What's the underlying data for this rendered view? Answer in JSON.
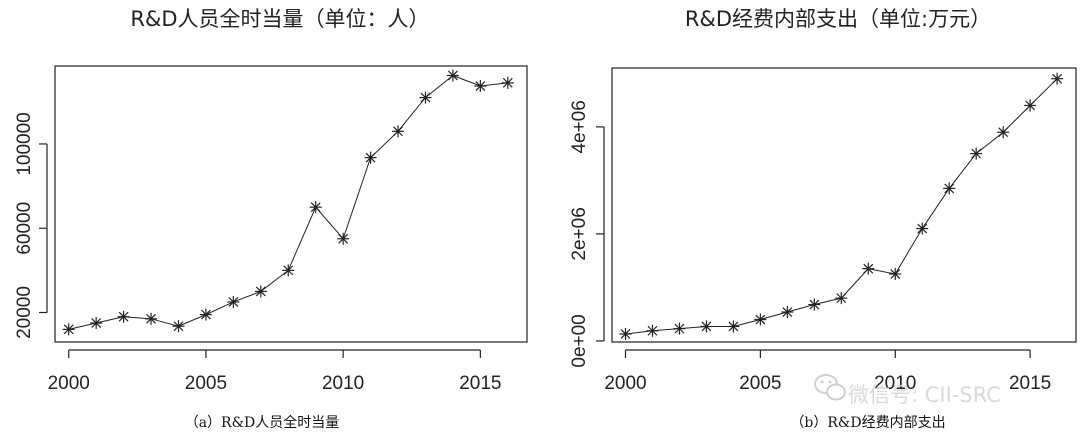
{
  "chart_data": [
    {
      "type": "line",
      "title": "R&D人员全时当量（单位：人）",
      "caption": "（a）R&D人员全时当量",
      "x": [
        2000,
        2001,
        2002,
        2003,
        2004,
        2005,
        2006,
        2007,
        2008,
        2009,
        2010,
        2011,
        2012,
        2013,
        2014,
        2015,
        2016
      ],
      "y": [
        12000,
        15000,
        18000,
        17000,
        13500,
        19000,
        25000,
        30000,
        40000,
        70000,
        55000,
        93500,
        106000,
        122000,
        132500,
        127500,
        129000
      ],
      "xlim": [
        1999.5,
        2016.7
      ],
      "ylim": [
        6000,
        137000
      ],
      "x_ticks": [
        2000,
        2005,
        2010,
        2015
      ],
      "x_tick_labels": [
        "2000",
        "2005",
        "2010",
        "2015"
      ],
      "y_ticks": [
        20000,
        60000,
        100000
      ],
      "y_tick_labels": [
        "20000",
        "60000",
        "100000"
      ],
      "marker": "asterisk",
      "grid": false
    },
    {
      "type": "line",
      "title": "R&D经费内部支出（单位:万元）",
      "caption": "（b）R&D经费内部支出",
      "x": [
        2000,
        2001,
        2002,
        2003,
        2004,
        2005,
        2006,
        2007,
        2008,
        2009,
        2010,
        2011,
        2012,
        2013,
        2014,
        2015,
        2016
      ],
      "y": [
        130000,
        190000,
        230000,
        270000,
        270000,
        400000,
        540000,
        680000,
        800000,
        1350000,
        1250000,
        2100000,
        2850000,
        3500000,
        3900000,
        4400000,
        4900000
      ],
      "xlim": [
        1999.5,
        2016.7
      ],
      "ylim": [
        -20000,
        5100000
      ],
      "x_ticks": [
        2000,
        2005,
        2010,
        2015
      ],
      "x_tick_labels": [
        "2000",
        "2005",
        "2010",
        "2015"
      ],
      "y_ticks": [
        0,
        2000000,
        4000000
      ],
      "y_tick_labels": [
        "0e+00",
        "2e+06",
        "4e+06"
      ],
      "marker": "asterisk",
      "grid": false
    }
  ],
  "watermark": {
    "text": "微信号: CII-SRC",
    "icon": "wechat-icon"
  }
}
